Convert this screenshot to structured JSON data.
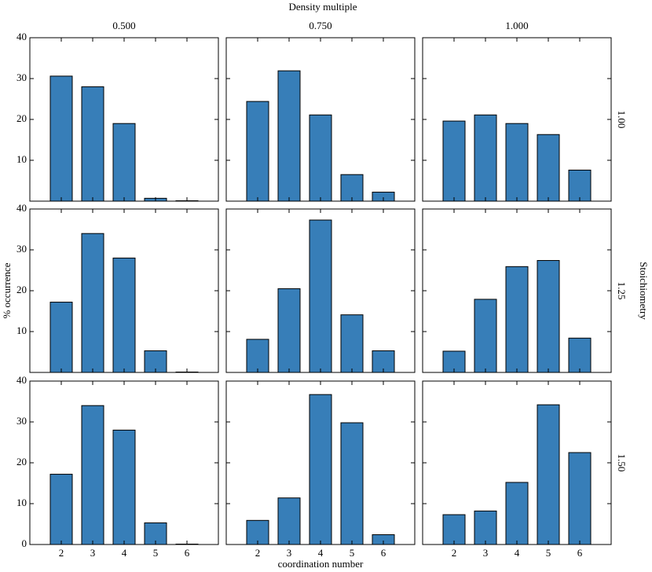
{
  "title": "Density multiple",
  "columns": [
    "0.500",
    "0.750",
    "1.000"
  ],
  "row_title": "Stoichiometry",
  "rows": [
    "1.00",
    "1.25",
    "1.50"
  ],
  "ylabel": "% occurrence",
  "xlabel": "coordination number",
  "x": [
    2,
    3,
    4,
    5,
    6
  ],
  "xlim": [
    1,
    7
  ],
  "chart_data": [
    {
      "type": "bar",
      "color": "#377eb8",
      "values": [
        30.6,
        28.0,
        19.0,
        0.7,
        0.1
      ],
      "ylim": [
        0,
        40
      ],
      "yticks": [
        10,
        20,
        30,
        40
      ]
    },
    {
      "type": "bar",
      "color": "#377eb8",
      "values": [
        24.4,
        31.9,
        21.1,
        6.5,
        2.2
      ],
      "ylim": [
        0,
        40
      ]
    },
    {
      "type": "bar",
      "color": "#377eb8",
      "values": [
        19.6,
        21.1,
        19.0,
        16.3,
        7.6
      ],
      "ylim": [
        0,
        40
      ]
    },
    {
      "type": "bar",
      "color": "#377eb8",
      "values": [
        17.2,
        34.0,
        28.0,
        5.3,
        0.1
      ],
      "ylim": [
        0,
        40
      ],
      "yticks": [
        10,
        20,
        30,
        40
      ]
    },
    {
      "type": "bar",
      "color": "#377eb8",
      "values": [
        8.1,
        20.5,
        37.3,
        14.1,
        5.3
      ],
      "ylim": [
        0,
        40
      ]
    },
    {
      "type": "bar",
      "color": "#377eb8",
      "values": [
        5.2,
        17.9,
        25.9,
        27.4,
        8.4
      ],
      "ylim": [
        0,
        40
      ]
    },
    {
      "type": "bar",
      "color": "#377eb8",
      "values": [
        17.2,
        34.0,
        28.0,
        5.3,
        0.1
      ],
      "ylim": [
        0,
        40
      ],
      "yticks": [
        0,
        10,
        20,
        30,
        40
      ]
    },
    {
      "type": "bar",
      "color": "#377eb8",
      "values": [
        5.9,
        11.4,
        36.7,
        29.8,
        2.4
      ],
      "ylim": [
        0,
        40
      ]
    },
    {
      "type": "bar",
      "color": "#377eb8",
      "values": [
        7.3,
        8.2,
        15.2,
        34.2,
        22.5
      ],
      "ylim": [
        0,
        40
      ]
    }
  ]
}
